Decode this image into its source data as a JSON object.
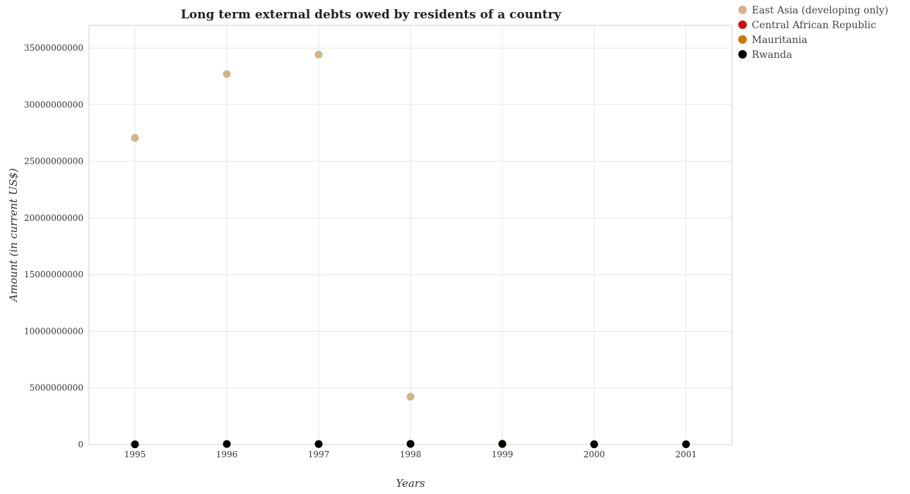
{
  "chart_data": {
    "type": "scatter",
    "title": "Long term external debts owed by residents of a country",
    "xlabel": "Years",
    "ylabel": "Amount (in current US$)",
    "categories": [
      "1995",
      "1996",
      "1997",
      "1998",
      "1999",
      "2000",
      "2001"
    ],
    "ylim": [
      0,
      37000000000
    ],
    "yticks": [
      0,
      5000000000,
      10000000000,
      15000000000,
      20000000000,
      25000000000,
      30000000000,
      35000000000
    ],
    "ytick_labels": [
      "0",
      "5000000000",
      "10000000000",
      "15000000000",
      "20000000000",
      "25000000000",
      "30000000000",
      "35000000000"
    ],
    "grid": true,
    "legend_position": "top-right",
    "series": [
      {
        "name": "East Asia (developing only)",
        "color": "#d2b48c",
        "values": [
          27070000000,
          32700000000,
          34420000000,
          4230000000,
          null,
          null,
          null
        ]
      },
      {
        "name": "Central African Republic",
        "color": "#cc1111",
        "values": [
          null,
          null,
          null,
          null,
          null,
          null,
          null
        ]
      },
      {
        "name": "Mauritania",
        "color": "#cc7700",
        "values": [
          null,
          null,
          null,
          null,
          30000000,
          20000000,
          null
        ]
      },
      {
        "name": "Rwanda",
        "color": "#000000",
        "values": [
          25000000,
          55000000,
          45000000,
          60000000,
          70000000,
          30000000,
          30000000
        ]
      }
    ]
  }
}
